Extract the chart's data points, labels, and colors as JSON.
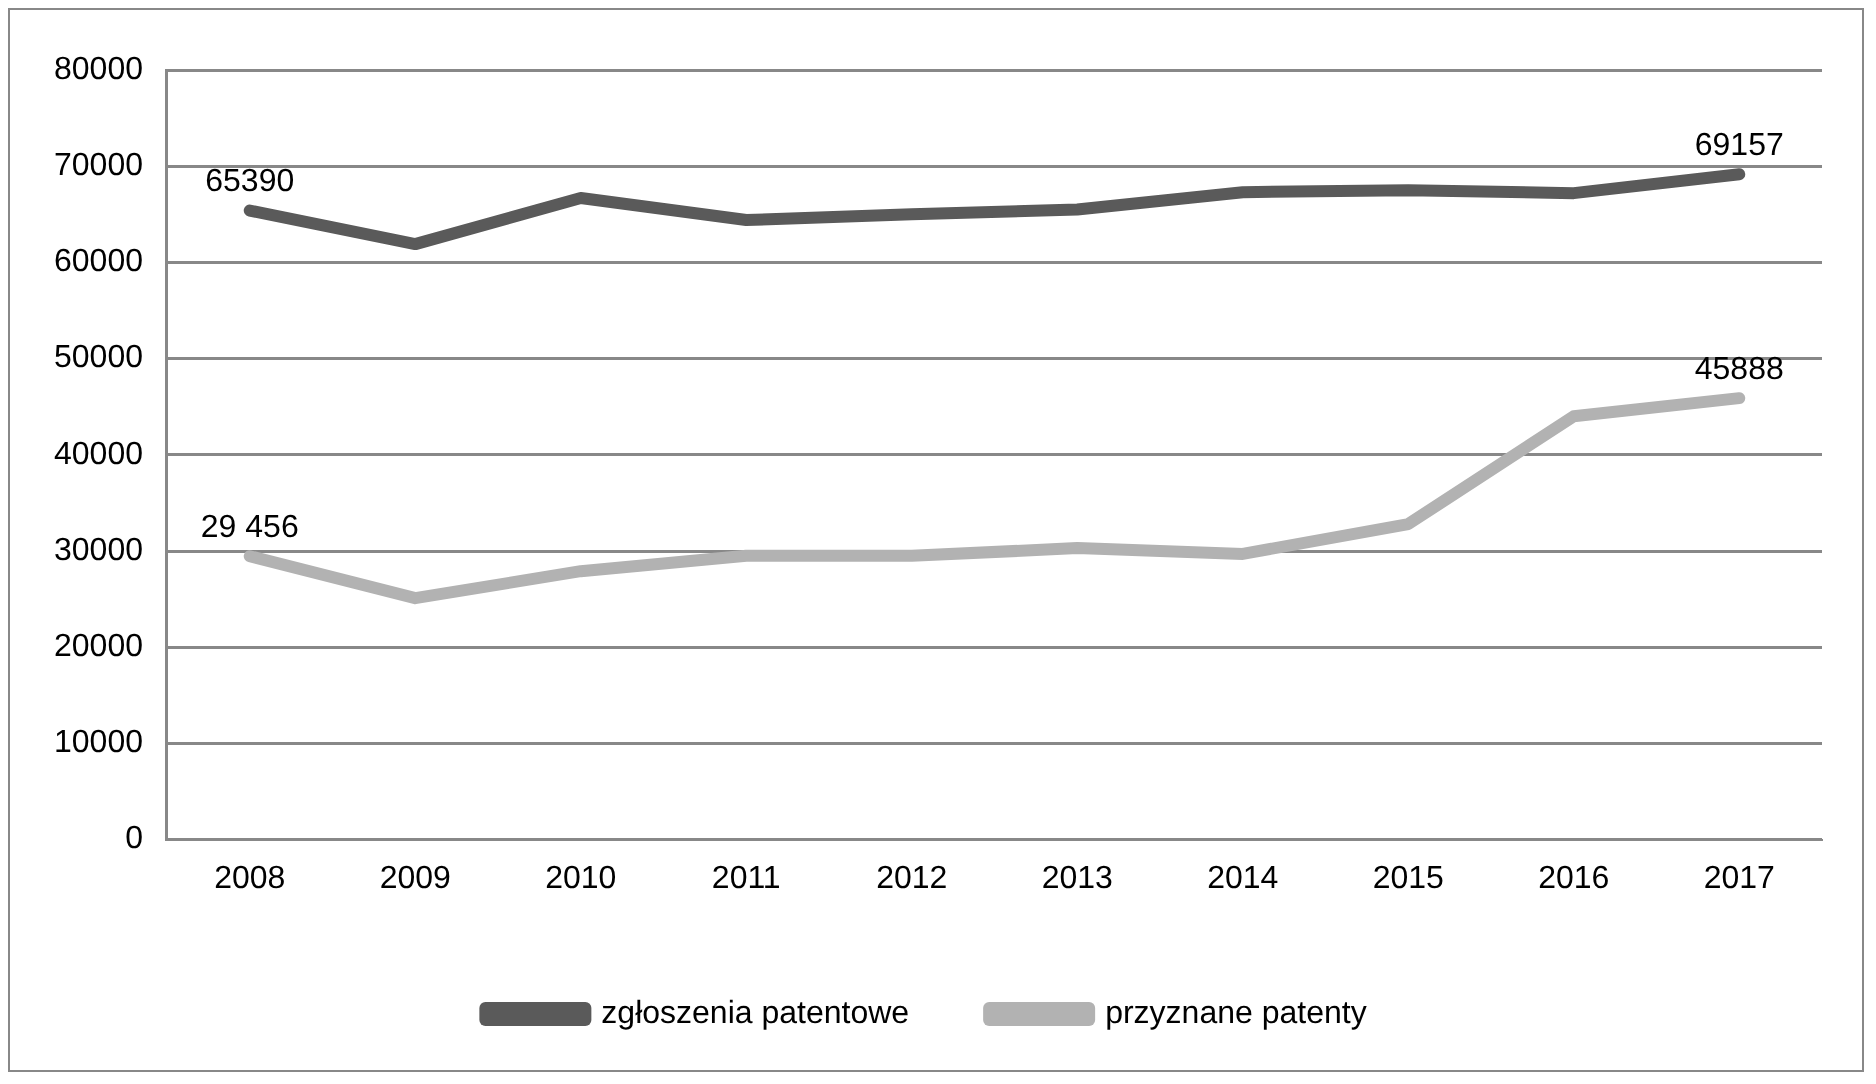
{
  "chart_data": {
    "type": "line",
    "categories": [
      "2008",
      "2009",
      "2010",
      "2011",
      "2012",
      "2013",
      "2014",
      "2015",
      "2016",
      "2017"
    ],
    "series": [
      {
        "name": "zgłoszenia patentowe",
        "color": "#5a5a5a",
        "values": [
          65390,
          61900,
          66700,
          64400,
          65000,
          65500,
          67300,
          67500,
          67200,
          69157
        ],
        "value_labels": [
          "65390",
          null,
          null,
          null,
          null,
          null,
          null,
          null,
          null,
          "69157"
        ]
      },
      {
        "name": "przyznane patenty",
        "color": "#b2b2b2",
        "values": [
          29456,
          25100,
          27900,
          29500,
          29500,
          30300,
          29700,
          32800,
          44000,
          45888
        ],
        "value_labels": [
          "29 456",
          null,
          null,
          null,
          null,
          null,
          null,
          null,
          null,
          "45888"
        ]
      }
    ],
    "ylim": [
      0,
      80000
    ],
    "yticks": [
      0,
      10000,
      20000,
      30000,
      40000,
      50000,
      60000,
      70000,
      80000
    ],
    "grid": "y",
    "legend": "bottom",
    "marker": "none",
    "line_style": "solid"
  }
}
